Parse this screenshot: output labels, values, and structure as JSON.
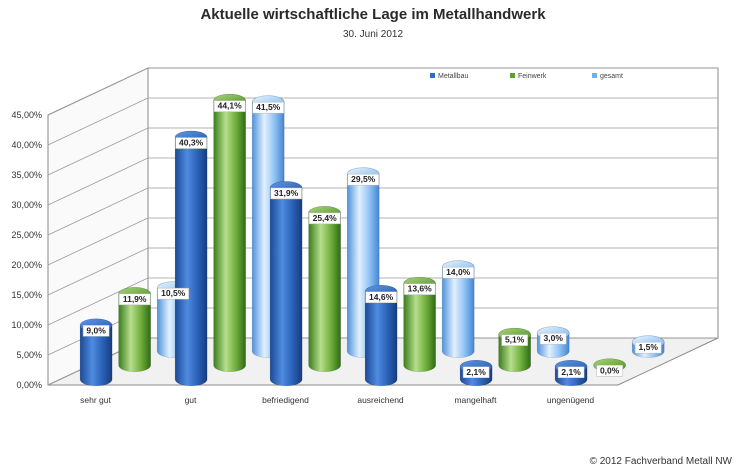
{
  "chart_data": {
    "type": "bar",
    "title": "Aktuelle wirtschaftliche Lage im Metallhandwerk",
    "subtitle": "30. Juni 2012",
    "categories": [
      "sehr gut",
      "gut",
      "befriedigend",
      "ausreichend",
      "mangelhaft",
      "ungenügend"
    ],
    "series": [
      {
        "name": "Metallbau",
        "values": [
          9.0,
          40.3,
          31.9,
          14.6,
          2.1,
          2.1
        ],
        "labels": [
          "9,0%",
          "40,3%",
          "31,9%",
          "14,6%",
          "2,1%",
          "2,1%"
        ],
        "color": "#2f6cc4"
      },
      {
        "name": "Feinwerk",
        "values": [
          11.9,
          44.1,
          25.4,
          13.6,
          5.1,
          0.0
        ],
        "labels": [
          "11,9%",
          "44,1%",
          "25,4%",
          "13,6%",
          "5,1%",
          "0,0%"
        ],
        "color": "#5ea12f"
      },
      {
        "name": "gesamt",
        "values": [
          10.5,
          41.5,
          29.5,
          14.0,
          3.0,
          1.5
        ],
        "labels": [
          "10,5%",
          "41,5%",
          "29,5%",
          "14,0%",
          "3,0%",
          "1,5%"
        ],
        "color": "#6fb0ee"
      }
    ],
    "y_ticks": [
      "0,00%",
      "5,00%",
      "10,00%",
      "15,00%",
      "20,00%",
      "25,00%",
      "30,00%",
      "35,00%",
      "40,00%",
      "45,00%"
    ],
    "ylim": [
      0,
      45
    ],
    "grid": true,
    "legend_position": "top-right",
    "chart_style": "3D cylinders"
  },
  "copyright": "© 2012 Fachverband Metall NW"
}
